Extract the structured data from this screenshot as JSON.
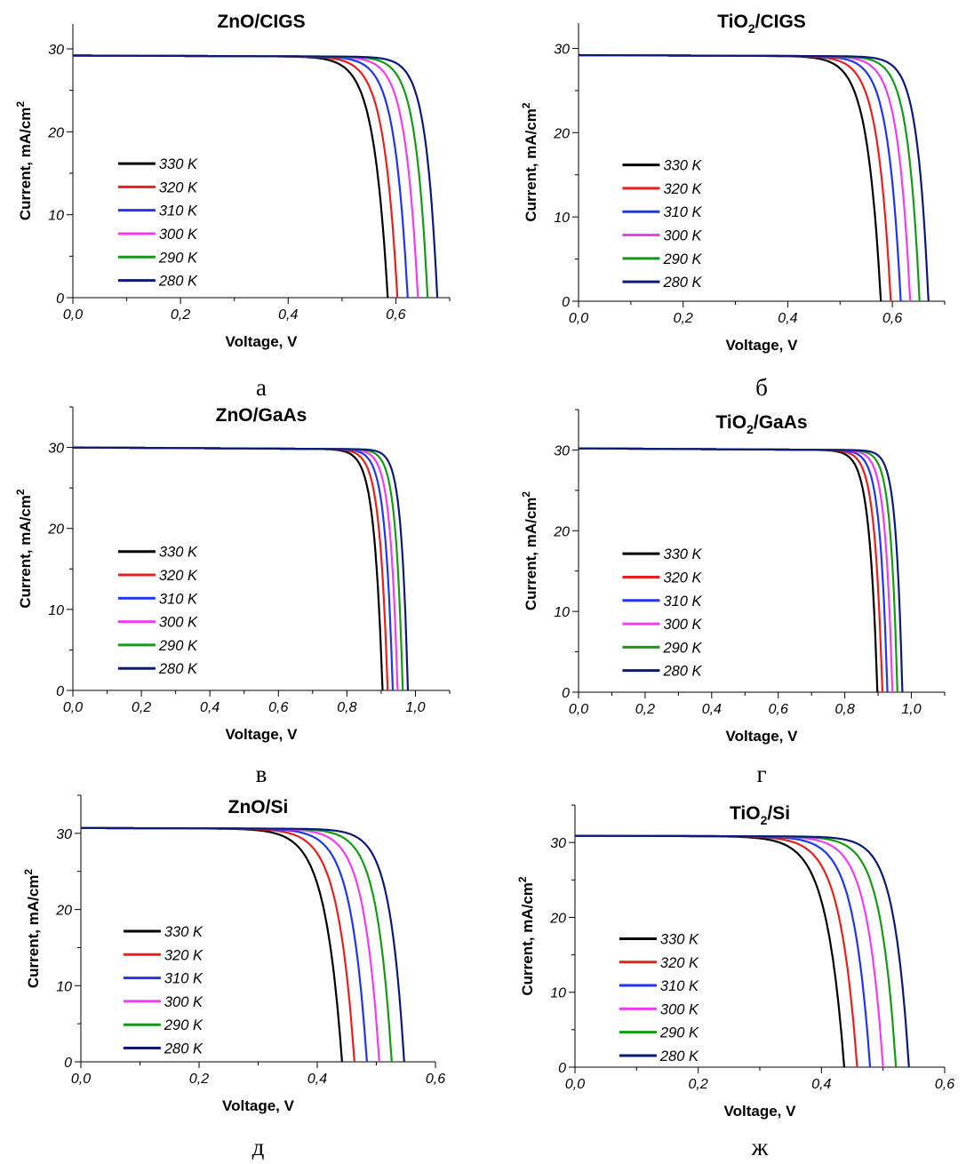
{
  "series_colors": {
    "330 K": "#000000",
    "320 K": "#e8201c",
    "310 K": "#1f35f0",
    "300 K": "#f23cf0",
    "290 K": "#149a14",
    "280 K": "#0b1a7a"
  },
  "chart_data": [
    {
      "type": "line",
      "title_main": "ZnO/CIGS",
      "title_sub": "",
      "title_rest": "",
      "caption": "a",
      "xlabel": "Voltage, V",
      "ylabel_main": "Current, mA/cm",
      "ylabel_sup": "2",
      "xlim": [
        0,
        0.7
      ],
      "ylim": [
        0,
        33
      ],
      "xticks": [
        0,
        0.2,
        0.4,
        0.6
      ],
      "xtick_labels": [
        "0,0",
        "0,2",
        "0,4",
        "0,6"
      ],
      "yticks": [
        0,
        10,
        20,
        30
      ],
      "ytick_labels": [
        "0",
        "10",
        "20",
        "30"
      ],
      "legend_position": "center-left",
      "jsc": 29.2,
      "series": [
        {
          "name": "330 K",
          "voc": 0.585,
          "knee": 0.026
        },
        {
          "name": "320 K",
          "voc": 0.603,
          "knee": 0.025
        },
        {
          "name": "310 K",
          "voc": 0.622,
          "knee": 0.024
        },
        {
          "name": "300 K",
          "voc": 0.641,
          "knee": 0.023
        },
        {
          "name": "290 K",
          "voc": 0.659,
          "knee": 0.022
        },
        {
          "name": "280 K",
          "voc": 0.677,
          "knee": 0.021
        }
      ]
    },
    {
      "type": "line",
      "title_main": "TiO",
      "title_sub": "2",
      "title_rest": "/CIGS",
      "caption": "б",
      "xlabel": "Voltage, V",
      "ylabel_main": "Current, mA/cm",
      "ylabel_sup": "2",
      "xlim": [
        0,
        0.7
      ],
      "ylim": [
        0,
        33
      ],
      "xticks": [
        0,
        0.2,
        0.4,
        0.6
      ],
      "xtick_labels": [
        "0,0",
        "0,2",
        "0,4",
        "0,6"
      ],
      "yticks": [
        0,
        10,
        20,
        30
      ],
      "ytick_labels": [
        "0",
        "10",
        "20",
        "30"
      ],
      "legend_position": "center-left",
      "jsc": 29.2,
      "series": [
        {
          "name": "330 K",
          "voc": 0.578,
          "knee": 0.026
        },
        {
          "name": "320 K",
          "voc": 0.597,
          "knee": 0.025
        },
        {
          "name": "310 K",
          "voc": 0.616,
          "knee": 0.024
        },
        {
          "name": "300 K",
          "voc": 0.634,
          "knee": 0.023
        },
        {
          "name": "290 K",
          "voc": 0.652,
          "knee": 0.022
        },
        {
          "name": "280 K",
          "voc": 0.669,
          "knee": 0.021
        }
      ]
    },
    {
      "type": "line",
      "title_main": "ZnO/GaAs",
      "title_sub": "",
      "title_rest": "",
      "caption": "в",
      "xlabel": "Voltage, V",
      "ylabel_main": "Current, mA/cm",
      "ylabel_sup": "2",
      "xlim": [
        0,
        1.1
      ],
      "ylim": [
        0,
        35
      ],
      "xticks": [
        0,
        0.2,
        0.4,
        0.6,
        0.8,
        1.0
      ],
      "xtick_labels": [
        "0,0",
        "0,2",
        "0,4",
        "0,6",
        "0,8",
        "1,0"
      ],
      "yticks": [
        0,
        10,
        20,
        30
      ],
      "ytick_labels": [
        "0",
        "10",
        "20",
        "30"
      ],
      "legend_position": "center-left",
      "jsc": 30.0,
      "series": [
        {
          "name": "330 K",
          "voc": 0.904,
          "knee": 0.024
        },
        {
          "name": "320 K",
          "voc": 0.919,
          "knee": 0.023
        },
        {
          "name": "310 K",
          "voc": 0.934,
          "knee": 0.022
        },
        {
          "name": "300 K",
          "voc": 0.948,
          "knee": 0.021
        },
        {
          "name": "290 K",
          "voc": 0.963,
          "knee": 0.02
        },
        {
          "name": "280 K",
          "voc": 0.978,
          "knee": 0.019
        }
      ]
    },
    {
      "type": "line",
      "title_main": "TiO",
      "title_sub": "2",
      "title_rest": "/GaAs",
      "caption": "г",
      "xlabel": "Voltage, V",
      "ylabel_main": "Current, mA/cm",
      "ylabel_sup": "2",
      "xlim": [
        0,
        1.1
      ],
      "ylim": [
        0,
        35
      ],
      "xticks": [
        0,
        0.2,
        0.4,
        0.6,
        0.8,
        1.0
      ],
      "xtick_labels": [
        "0,0",
        "0,2",
        "0,4",
        "0,6",
        "0,8",
        "1,0"
      ],
      "yticks": [
        0,
        10,
        20,
        30
      ],
      "ytick_labels": [
        "0",
        "10",
        "20",
        "30"
      ],
      "legend_position": "center-left",
      "jsc": 30.2,
      "series": [
        {
          "name": "330 K",
          "voc": 0.898,
          "knee": 0.024
        },
        {
          "name": "320 K",
          "voc": 0.913,
          "knee": 0.023
        },
        {
          "name": "310 K",
          "voc": 0.928,
          "knee": 0.022
        },
        {
          "name": "300 K",
          "voc": 0.943,
          "knee": 0.021
        },
        {
          "name": "290 K",
          "voc": 0.958,
          "knee": 0.02
        },
        {
          "name": "280 K",
          "voc": 0.973,
          "knee": 0.019
        }
      ]
    },
    {
      "type": "line",
      "title_main": "ZnO/Si",
      "title_sub": "",
      "title_rest": "",
      "caption": "д",
      "xlabel": "Voltage, V",
      "ylabel_main": "Current, mA/cm",
      "ylabel_sup": "2",
      "xlim": [
        0,
        0.6
      ],
      "ylim": [
        0,
        35
      ],
      "xticks": [
        0,
        0.2,
        0.4,
        0.6
      ],
      "xtick_labels": [
        "0,0",
        "0,2",
        "0,4",
        "0,6"
      ],
      "yticks": [
        0,
        10,
        20,
        30
      ],
      "ytick_labels": [
        "0",
        "10",
        "20",
        "30"
      ],
      "legend_position": "center-left",
      "jsc": 30.7,
      "series": [
        {
          "name": "330 K",
          "voc": 0.442,
          "knee": 0.029
        },
        {
          "name": "320 K",
          "voc": 0.463,
          "knee": 0.028
        },
        {
          "name": "310 K",
          "voc": 0.484,
          "knee": 0.027
        },
        {
          "name": "300 K",
          "voc": 0.505,
          "knee": 0.026
        },
        {
          "name": "290 K",
          "voc": 0.526,
          "knee": 0.025
        },
        {
          "name": "280 K",
          "voc": 0.547,
          "knee": 0.024
        }
      ]
    },
    {
      "type": "line",
      "title_main": "TiO",
      "title_sub": "2",
      "title_rest": "/Si",
      "caption": "ж",
      "xlabel": "Voltage, V",
      "ylabel_main": "Current, mA/cm",
      "ylabel_sup": "2",
      "xlim": [
        0,
        0.6
      ],
      "ylim": [
        0,
        35
      ],
      "xticks": [
        0,
        0.2,
        0.4,
        0.6
      ],
      "xtick_labels": [
        "0,0",
        "0,2",
        "0,4",
        "0,6"
      ],
      "yticks": [
        0,
        10,
        20,
        30
      ],
      "ytick_labels": [
        "0",
        "10",
        "20",
        "30"
      ],
      "legend_position": "center-left",
      "jsc": 30.9,
      "series": [
        {
          "name": "330 K",
          "voc": 0.437,
          "knee": 0.029
        },
        {
          "name": "320 K",
          "voc": 0.458,
          "knee": 0.028
        },
        {
          "name": "310 K",
          "voc": 0.479,
          "knee": 0.027
        },
        {
          "name": "300 K",
          "voc": 0.5,
          "knee": 0.026
        },
        {
          "name": "290 K",
          "voc": 0.521,
          "knee": 0.025
        },
        {
          "name": "280 K",
          "voc": 0.542,
          "knee": 0.024
        }
      ]
    }
  ]
}
